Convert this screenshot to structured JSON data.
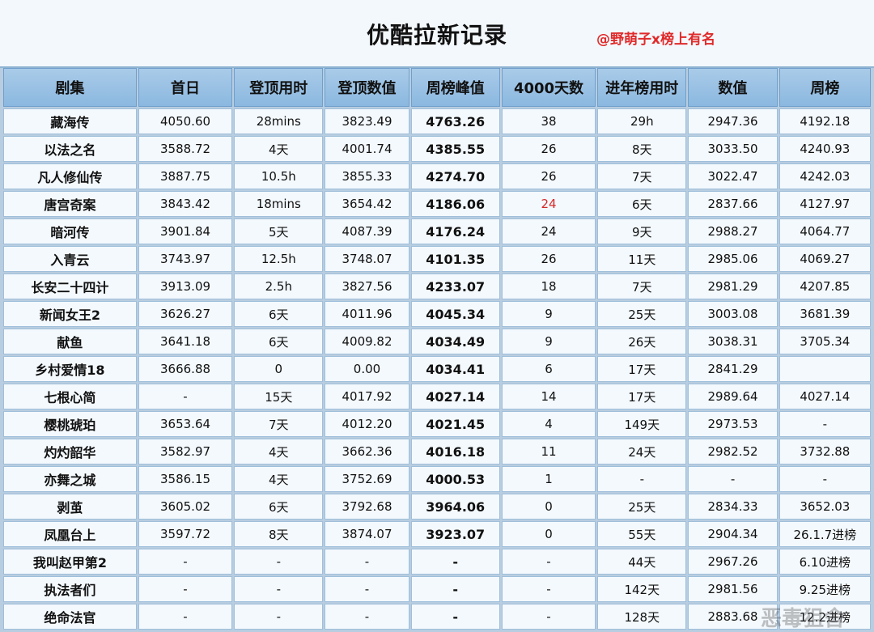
{
  "title": "优酷拉新记录",
  "watermark_top": "@野萌子x榜上有名",
  "watermark_bottom": "恶毒狙舍",
  "columns": [
    "剧集",
    "首日",
    "登顶用时",
    "登顶数值",
    "周榜峰值",
    "4000天数",
    "进年榜用时",
    "数值",
    "周榜"
  ],
  "rows": [
    [
      "藏海传",
      "4050.60",
      "28mins",
      "3823.49",
      "4763.26",
      "38",
      "29h",
      "2947.36",
      "4192.18"
    ],
    [
      "以法之名",
      "3588.72",
      "4天",
      "4001.74",
      "4385.55",
      "26",
      "8天",
      "3033.50",
      "4240.93"
    ],
    [
      "凡人修仙传",
      "3887.75",
      "10.5h",
      "3855.33",
      "4274.70",
      "26",
      "7天",
      "3022.47",
      "4242.03"
    ],
    [
      "唐宫奇案",
      "3843.42",
      "18mins",
      "3654.42",
      "4186.06",
      "24",
      "6天",
      "2837.66",
      "4127.97"
    ],
    [
      "暗河传",
      "3901.84",
      "5天",
      "4087.39",
      "4176.24",
      "24",
      "9天",
      "2988.27",
      "4064.77"
    ],
    [
      "入青云",
      "3743.97",
      "12.5h",
      "3748.07",
      "4101.35",
      "26",
      "11天",
      "2985.06",
      "4069.27"
    ],
    [
      "长安二十四计",
      "3913.09",
      "2.5h",
      "3827.56",
      "4233.07",
      "18",
      "7天",
      "2981.29",
      "4207.85"
    ],
    [
      "新闻女王2",
      "3626.27",
      "6天",
      "4011.96",
      "4045.34",
      "9",
      "25天",
      "3003.08",
      "3681.39"
    ],
    [
      "献鱼",
      "3641.18",
      "6天",
      "4009.82",
      "4034.49",
      "9",
      "26天",
      "3038.31",
      "3705.34"
    ],
    [
      "乡村爱情18",
      "3666.88",
      "0",
      "0.00",
      "4034.41",
      "6",
      "17天",
      "2841.29",
      ""
    ],
    [
      "七根心简",
      "-",
      "15天",
      "4017.92",
      "4027.14",
      "14",
      "17天",
      "2989.64",
      "4027.14"
    ],
    [
      "樱桃琥珀",
      "3653.64",
      "7天",
      "4012.20",
      "4021.45",
      "4",
      "149天",
      "2973.53",
      "-"
    ],
    [
      "灼灼韶华",
      "3582.97",
      "4天",
      "3662.36",
      "4016.18",
      "11",
      "24天",
      "2982.52",
      "3732.88"
    ],
    [
      "亦舞之城",
      "3586.15",
      "4天",
      "3752.69",
      "4000.53",
      "1",
      "-",
      "-",
      "-"
    ],
    [
      "剥茧",
      "3605.02",
      "6天",
      "3792.68",
      "3964.06",
      "0",
      "25天",
      "2834.33",
      "3652.03"
    ],
    [
      "凤凰台上",
      "3597.72",
      "8天",
      "3874.07",
      "3923.07",
      "0",
      "55天",
      "2904.34",
      "26.1.7进榜"
    ],
    [
      "我叫赵甲第2",
      "-",
      "-",
      "-",
      "-",
      "-",
      "44天",
      "2967.26",
      "6.10进榜"
    ],
    [
      "执法者们",
      "-",
      "-",
      "-",
      "-",
      "-",
      "142天",
      "2981.56",
      "9.25进榜"
    ],
    [
      "绝命法官",
      "-",
      "-",
      "-",
      "-",
      "-",
      "128天",
      "2883.68",
      "12.2进榜"
    ]
  ],
  "highlight_color": "#d42a2a"
}
